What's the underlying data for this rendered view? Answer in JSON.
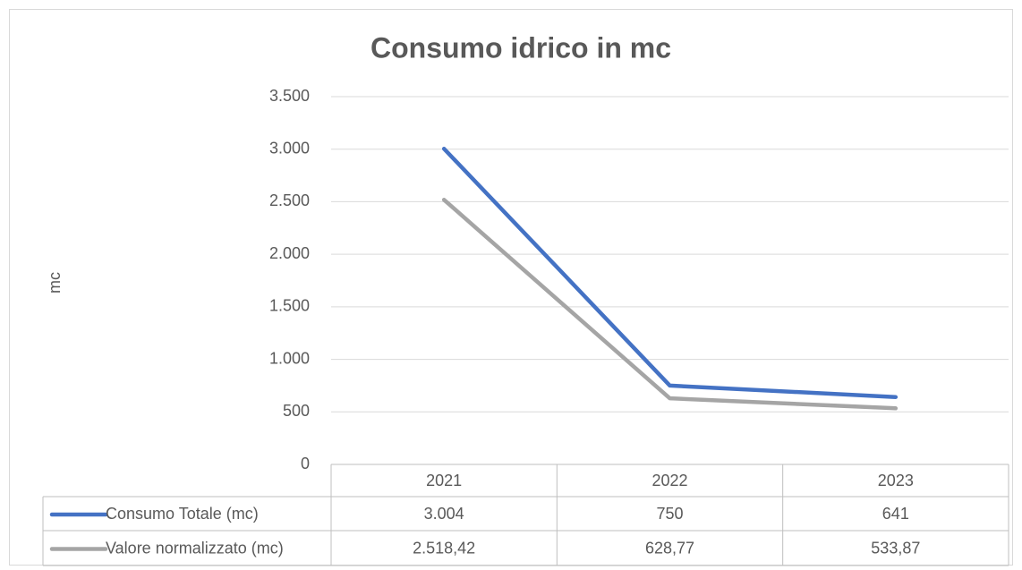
{
  "chart_data": {
    "type": "line",
    "title": "Consumo idrico in mc",
    "y_label": "mc",
    "categories": [
      "2021",
      "2022",
      "2023"
    ],
    "series": [
      {
        "name": "Consumo Totale (mc)",
        "color": "#4472c4",
        "values": [
          3004,
          750,
          641
        ],
        "value_labels": [
          "3.004",
          "750",
          "641"
        ]
      },
      {
        "name": "Valore normalizzato (mc)",
        "color": "#a5a5a5",
        "values": [
          2518.42,
          628.77,
          533.87
        ],
        "value_labels": [
          "2.518,42",
          "628,77",
          "533,87"
        ]
      }
    ],
    "ylim": [
      0,
      3500
    ],
    "yticks": [
      0,
      500,
      {
        "value": 1000,
        "label": "1.000"
      },
      {
        "value": 1500,
        "label": "1.500"
      },
      {
        "value": 2000,
        "label": "2.000"
      },
      {
        "value": 2500,
        "label": "2.500"
      },
      {
        "value": 3000,
        "label": "3.000"
      },
      {
        "value": 3500,
        "label": "3.500"
      }
    ],
    "grid": true,
    "legend": "table"
  }
}
